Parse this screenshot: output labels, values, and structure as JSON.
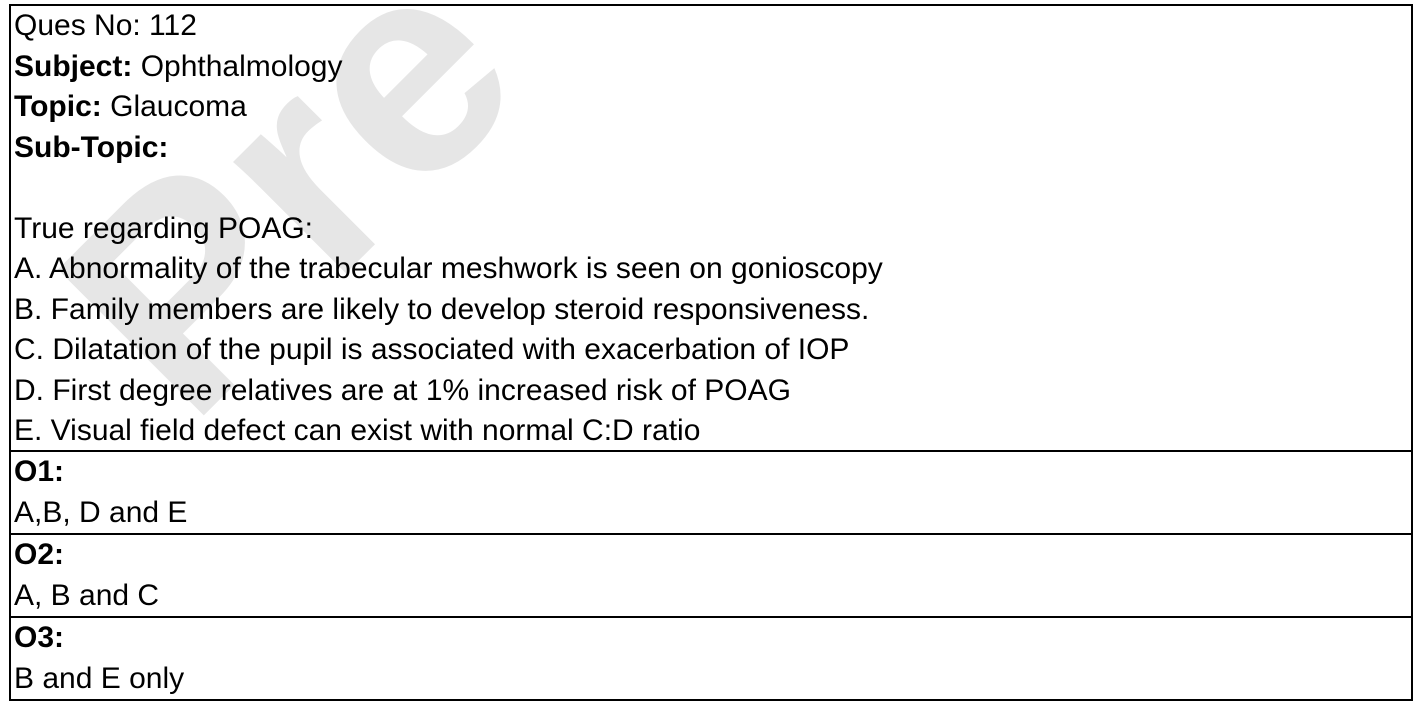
{
  "watermark": {
    "text": "Pre",
    "color": "#e6e6e6"
  },
  "meta": {
    "ques_no_label": "Ques No: 112",
    "subject_label": "Subject:",
    "subject_value": "Ophthalmology",
    "topic_label": "Topic:",
    "topic_value": "Glaucoma",
    "subtopic_label": "Sub-Topic:",
    "subtopic_value": ""
  },
  "question": {
    "stem": "True regarding POAG:",
    "statements": [
      "A. Abnormality of the trabecular meshwork is seen on gonioscopy",
      "B. Family members are likely to develop steroid responsiveness.",
      "C. Dilatation of the pupil is associated with exacerbation of IOP",
      "D. First degree relatives are at 1% increased risk of POAG",
      "E. Visual field defect can exist with normal C:D ratio"
    ]
  },
  "options": [
    {
      "label": "O1:",
      "text": "A,B, D and E"
    },
    {
      "label": "O2:",
      "text": "A, B and C"
    },
    {
      "label": "O3:",
      "text": "B and E only"
    }
  ]
}
